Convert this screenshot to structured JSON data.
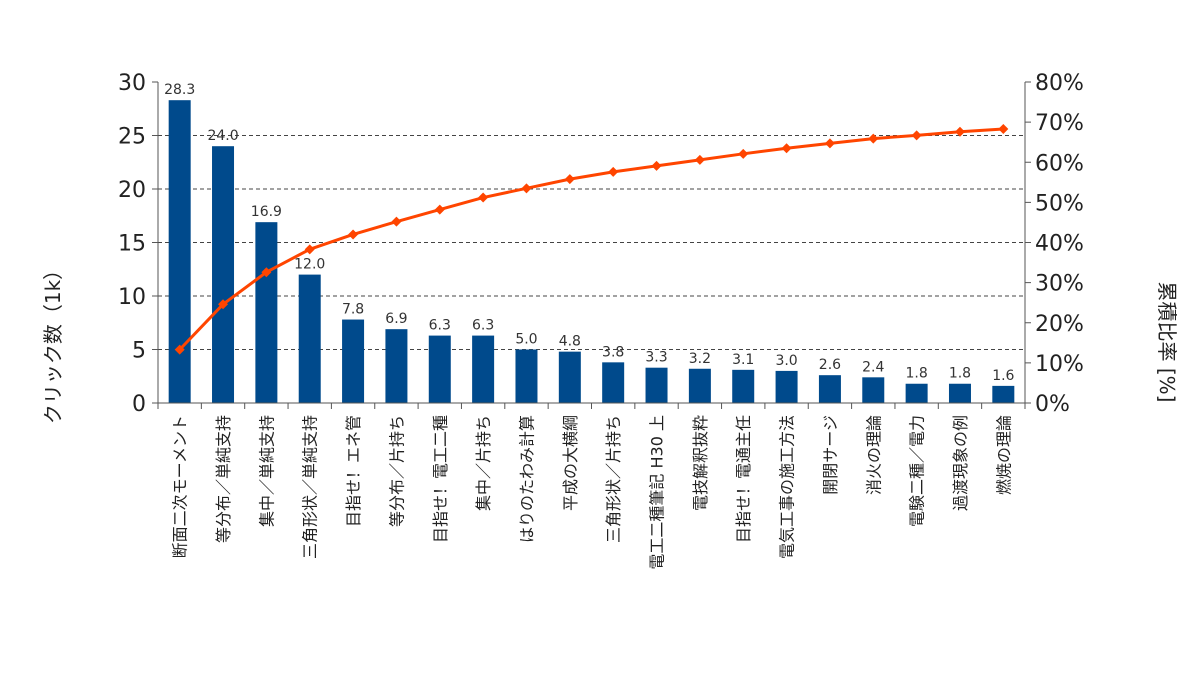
{
  "chart_data": {
    "type": "bar",
    "title": "",
    "categories": [
      "断面二次モーメント",
      "等分布／単純支持",
      "集中／単純支持",
      "三角形状／単純支持",
      "目指せ！エネ管",
      "等分布／片持ち",
      "目指せ！電工二種",
      "集中／片持ち",
      "はりのたわみ計算",
      "平成の大横綱",
      "三角形状／片持ち",
      "電工二種筆記 H30 上",
      "電技解釈抜粋",
      "目指せ！電通主任",
      "電気工事の施工方法",
      "開閉サージ",
      "消火の理論",
      "電験二種／電力",
      "過渡現象の例",
      "燃焼の理論"
    ],
    "series": [
      {
        "name": "クリック数",
        "axis": "left",
        "kind": "bar",
        "color": "#004a8c",
        "values": [
          28.3,
          24.0,
          16.9,
          12.0,
          7.8,
          6.9,
          6.3,
          6.3,
          5.0,
          4.8,
          3.8,
          3.3,
          3.2,
          3.1,
          3.0,
          2.6,
          2.4,
          1.8,
          1.8,
          1.6
        ],
        "labels": [
          "28.3",
          "24.0",
          "16.9",
          "12.0",
          "7.8",
          "6.9",
          "6.3",
          "6.3",
          "5.0",
          "4.8",
          "3.8",
          "3.3",
          "3.2",
          "3.1",
          "3.0",
          "2.6",
          "2.4",
          "1.8",
          "1.8",
          "1.6"
        ]
      },
      {
        "name": "累積比率",
        "axis": "right",
        "kind": "line",
        "color": "#ff4500",
        "values": [
          13.3,
          24.6,
          32.6,
          38.3,
          42.0,
          45.2,
          48.2,
          51.2,
          53.5,
          55.8,
          57.6,
          59.1,
          60.6,
          62.1,
          63.5,
          64.7,
          65.9,
          66.7,
          67.6,
          68.3
        ]
      }
    ],
    "ylabel": "クリック数（1k）",
    "y2label": "累積比率 [%]",
    "ylim": [
      0,
      30
    ],
    "y2lim": [
      0,
      80
    ],
    "yticks": [
      "0",
      "5",
      "10",
      "15",
      "20",
      "25",
      "30"
    ],
    "y2ticks": [
      "0%",
      "10%",
      "20%",
      "30%",
      "40%",
      "50%",
      "60%",
      "70%",
      "80%"
    ],
    "gridlines": [
      5,
      10,
      15,
      20,
      25
    ]
  }
}
